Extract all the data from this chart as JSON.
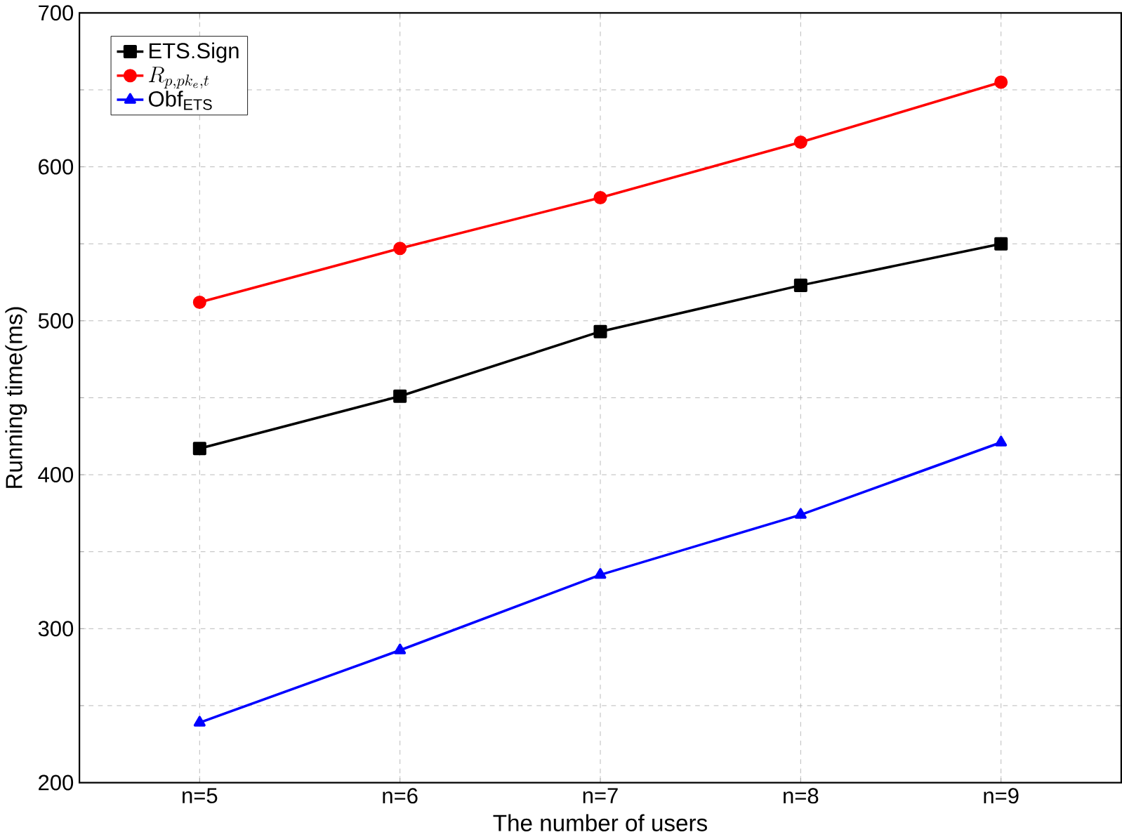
{
  "chart_data": {
    "type": "line",
    "xlabel": "The number of users",
    "ylabel": "Running time(ms)",
    "categories": [
      "n=5",
      "n=6",
      "n=7",
      "n=8",
      "n=9"
    ],
    "series": [
      {
        "name": "\\mathrm{ETS.Sign}",
        "color": "#000000",
        "marker": "square",
        "values": [
          417,
          451,
          493,
          523,
          550
        ]
      },
      {
        "name": "R_{p,pk_e,t}",
        "color": "#ff0000",
        "marker": "circle",
        "values": [
          512,
          547,
          580,
          616,
          655
        ]
      },
      {
        "name": "\\mathrm{Obf}_{\\mathrm{ETS}}",
        "color": "#0000ff",
        "marker": "triangle",
        "values": [
          239,
          286,
          335,
          374,
          421
        ]
      }
    ],
    "ylim": [
      200,
      700
    ],
    "yticks": [
      200,
      300,
      400,
      500,
      600,
      700
    ],
    "grid": true,
    "legend": "top left",
    "line_style": "solid"
  }
}
